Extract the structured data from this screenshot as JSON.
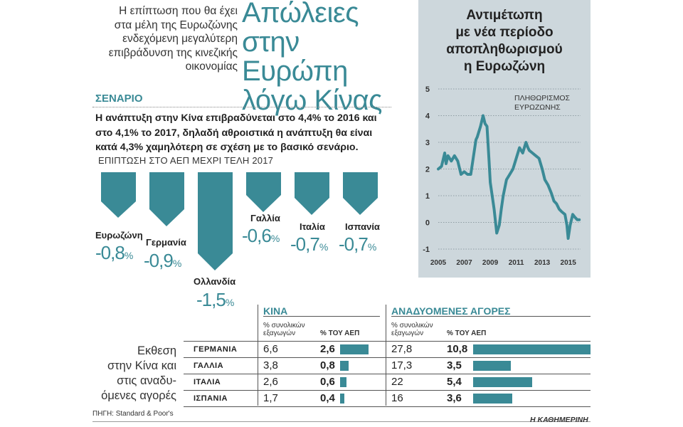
{
  "intro": [
    "Η επίπτωση που θα έχει",
    "στα μέλη της Ευρωζώνης",
    "ενδεχόμενη μεγαλύτερη",
    "επιβράδυνση της κινεζικής",
    "οικονομίας"
  ],
  "headline": [
    "Απώλειες",
    "στην Ευρώπη",
    "λόγω Κίνας"
  ],
  "scenario": {
    "title": "ΣΕΝΑΡΙΟ",
    "text": "Η ανάπτυξη στην Κίνα επιβραδύνεται στο 4,4% το 2016 και στο 4,1% το 2017, δηλαδή αθροιστικά η ανάπτυξη θα είναι κατά 4,3% χαμηλότερη σε σχέση με το βασικό σενάριο.",
    "impact_title": "ΕΠΙΠΤΩΣΗ ΣΤΟ ΑΕΠ ΜΕΧΡΙ ΤΕΛΗ 2017",
    "unit": "%",
    "countries": [
      {
        "name": "Ευρωζώνη",
        "value": -0.8,
        "label": "-0,8"
      },
      {
        "name": "Γερμανία",
        "value": -0.9,
        "label": "-0,9"
      },
      {
        "name": "Ολλανδία",
        "value": -1.5,
        "label": "-1,5"
      },
      {
        "name": "Γαλλία",
        "value": -0.6,
        "label": "-0,6"
      },
      {
        "name": "Ιταλία",
        "value": -0.7,
        "label": "-0,7"
      },
      {
        "name": "Ισπανία",
        "value": -0.7,
        "label": "-0,7"
      }
    ]
  },
  "inflation": {
    "title": [
      "Αντιμέτωπη",
      "με νέα περίοδο",
      "αποπληθωρισμού",
      "η Ευρωζώνη"
    ],
    "legend": [
      "ΠΛΗΘΩΡΙΣΜΟΣ",
      "ΕΥΡΩΖΩΝΗΣ"
    ]
  },
  "chart_data": {
    "type": "line",
    "title": "Αντιμέτωπη με νέα περίοδο αποπληθωρισμού η Ευρωζώνη",
    "ylim": [
      -1,
      5
    ],
    "yticks": [
      "5",
      "4",
      "3",
      "2",
      "1",
      "0",
      "-1"
    ],
    "ytick_values": [
      5,
      4,
      3,
      2,
      1,
      0,
      -1
    ],
    "xlim": [
      2005.0,
      2015.95
    ],
    "xticks": [
      "2005",
      "2007",
      "2009",
      "2011",
      "2013",
      "2015"
    ],
    "xtick_values": [
      2005,
      2007,
      2009,
      2011,
      2013,
      2015
    ],
    "series": [
      {
        "name": "ΠΛΗΘΩΡΙΣΜΟΣ ΕΥΡΩΖΩΝΗΣ",
        "color": "#3a8a96",
        "x": [
          2005.0,
          2005.25,
          2005.5,
          2005.6,
          2005.75,
          2006.0,
          2006.25,
          2006.5,
          2006.75,
          2007.0,
          2007.25,
          2007.5,
          2007.75,
          2007.9,
          2008.0,
          2008.25,
          2008.45,
          2008.6,
          2008.75,
          2008.9,
          2009.0,
          2009.15,
          2009.3,
          2009.5,
          2009.7,
          2009.85,
          2010.0,
          2010.25,
          2010.5,
          2010.75,
          2011.0,
          2011.25,
          2011.5,
          2011.75,
          2011.9,
          2012.0,
          2012.25,
          2012.5,
          2012.75,
          2013.0,
          2013.2,
          2013.45,
          2013.7,
          2013.9,
          2014.1,
          2014.3,
          2014.5,
          2014.75,
          2014.9,
          2015.0,
          2015.15,
          2015.35,
          2015.5,
          2015.7,
          2015.85
        ],
        "y": [
          2.0,
          2.1,
          2.6,
          2.2,
          2.5,
          2.3,
          2.5,
          2.3,
          1.8,
          1.9,
          1.8,
          1.8,
          2.6,
          3.1,
          3.2,
          3.6,
          4.0,
          3.7,
          3.6,
          2.4,
          1.5,
          1.0,
          0.5,
          -0.4,
          -0.1,
          0.5,
          1.0,
          1.6,
          1.8,
          2.0,
          2.4,
          2.8,
          2.6,
          3.0,
          2.8,
          2.7,
          2.6,
          2.5,
          2.4,
          2.0,
          1.6,
          1.4,
          1.1,
          0.8,
          0.7,
          0.5,
          0.4,
          0.3,
          -0.1,
          -0.6,
          -0.1,
          0.3,
          0.2,
          0.1,
          0.1
        ]
      }
    ]
  },
  "exposure": {
    "label": [
      "Εκθεση",
      "στην Κίνα και",
      "στις αναδυ-",
      "όμενες αγορές"
    ],
    "china": {
      "title": "ΚΙΝΑ",
      "share_head": [
        "% συνολικών",
        "εξαγωγών"
      ],
      "gdp_head": "% ΤΟΥ ΑΕΠ"
    },
    "em": {
      "title": "ΑΝΑΔΥΟΜΕΝΕΣ ΑΓΟΡΕΣ",
      "share_head": [
        "% συνολικών",
        "εξαγωγών"
      ],
      "gdp_head": "% ΤΟΥ ΑΕΠ"
    },
    "rows": [
      {
        "country": "ΓΕΡΜΑΝΙΑ",
        "china_share": "6,6",
        "china_gdp": "2,6",
        "china_gdp_value": 2.6,
        "em_share": "27,8",
        "em_gdp": "10,8",
        "em_gdp_value": 10.8
      },
      {
        "country": "ΓΑΛΛΙΑ",
        "china_share": "3,8",
        "china_gdp": "0,8",
        "china_gdp_value": 0.8,
        "em_share": "17,3",
        "em_gdp": "3,5",
        "em_gdp_value": 3.5
      },
      {
        "country": "ΙΤΑΛΙΑ",
        "china_share": "2,6",
        "china_gdp": "0,6",
        "china_gdp_value": 0.6,
        "em_share": "22",
        "em_gdp": "5,4",
        "em_gdp_value": 5.4
      },
      {
        "country": "ΙΣΠΑΝΙΑ",
        "china_share": "1,7",
        "china_gdp": "0,4",
        "china_gdp_value": 0.4,
        "em_share": "16",
        "em_gdp": "3,6",
        "em_gdp_value": 3.6
      }
    ]
  },
  "source": "ΠΗΓΗ: Standard & Poor's",
  "brand": "Η ΚΑΘΗΜΕΡΙΝΗ"
}
